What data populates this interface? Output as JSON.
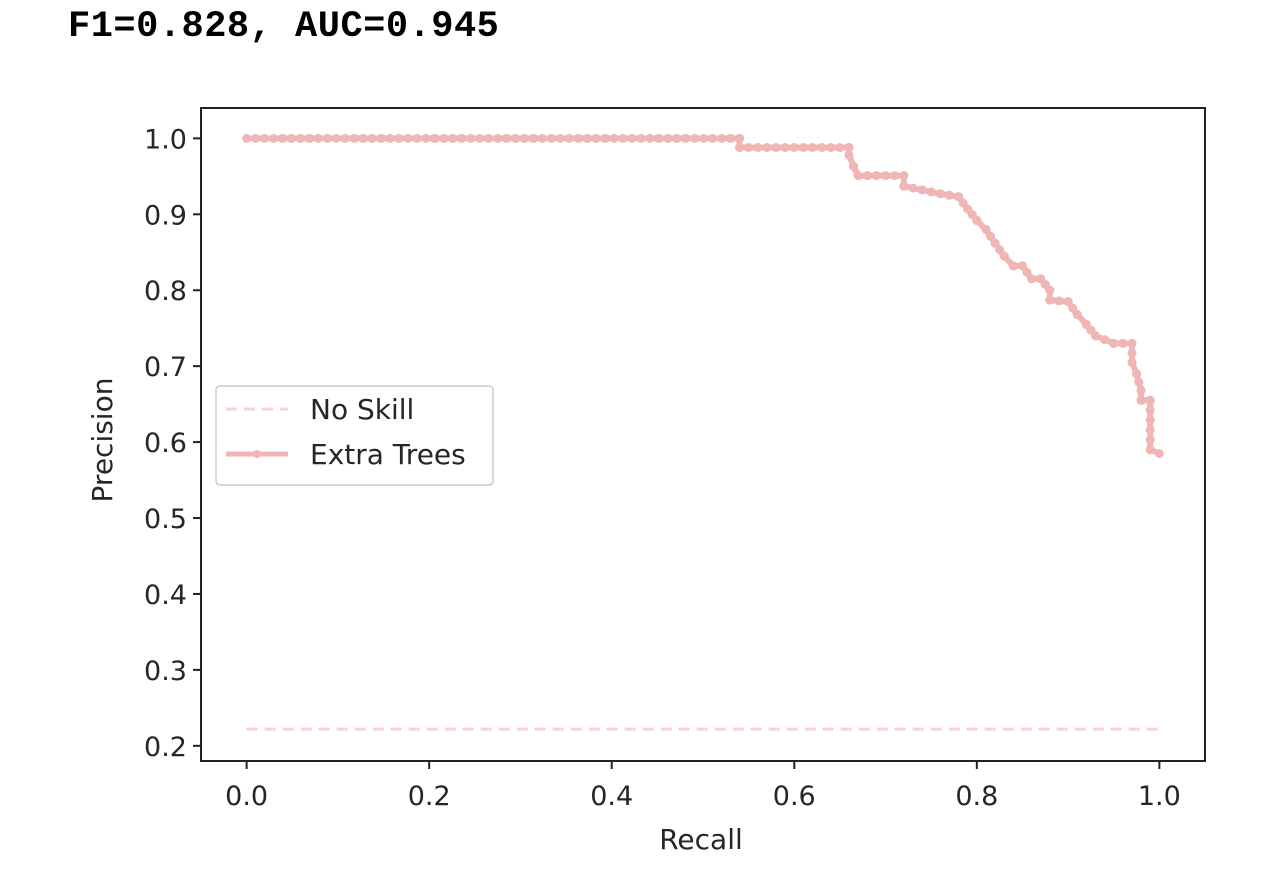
{
  "header": {
    "text": "F1=0.828, AUC=0.945"
  },
  "chart_data": {
    "type": "line",
    "title": "",
    "xlabel": "Recall",
    "ylabel": "Precision",
    "xlim": [
      -0.05,
      1.05
    ],
    "ylim": [
      0.18,
      1.04
    ],
    "xticks": [
      0.0,
      0.2,
      0.4,
      0.6,
      0.8,
      1.0
    ],
    "xtick_labels": [
      "0.0",
      "0.2",
      "0.4",
      "0.6",
      "0.8",
      "1.0"
    ],
    "yticks": [
      0.2,
      0.3,
      0.4,
      0.5,
      0.6,
      0.7,
      0.8,
      0.9,
      1.0
    ],
    "ytick_labels": [
      "0.2",
      "0.3",
      "0.4",
      "0.5",
      "0.6",
      "0.7",
      "0.8",
      "0.9",
      "1.0"
    ],
    "grid": false,
    "legend_position": "center-left",
    "series": [
      {
        "name": "No Skill",
        "style": "dashed",
        "color": "#f9d3d3",
        "x": [
          0.0,
          1.0
        ],
        "y": [
          0.222,
          0.222
        ]
      },
      {
        "name": "Extra Trees",
        "style": "solid-marker",
        "color": "#f0b6b6",
        "x": [
          0.0,
          0.54,
          0.54,
          0.66,
          0.66,
          0.665,
          0.67,
          0.68,
          0.72,
          0.72,
          0.74,
          0.76,
          0.78,
          0.79,
          0.8,
          0.81,
          0.82,
          0.83,
          0.84,
          0.85,
          0.86,
          0.87,
          0.88,
          0.88,
          0.9,
          0.91,
          0.92,
          0.93,
          0.95,
          0.96,
          0.97,
          0.97,
          0.975,
          0.98,
          0.98,
          0.99,
          0.99,
          1.0
        ],
        "y": [
          1.0,
          1.0,
          0.988,
          0.988,
          0.978,
          0.963,
          0.951,
          0.951,
          0.951,
          0.937,
          0.932,
          0.927,
          0.923,
          0.907,
          0.892,
          0.88,
          0.862,
          0.845,
          0.832,
          0.832,
          0.815,
          0.815,
          0.8,
          0.787,
          0.785,
          0.768,
          0.755,
          0.74,
          0.73,
          0.73,
          0.73,
          0.705,
          0.69,
          0.668,
          0.655,
          0.655,
          0.59,
          0.585
        ]
      }
    ]
  }
}
